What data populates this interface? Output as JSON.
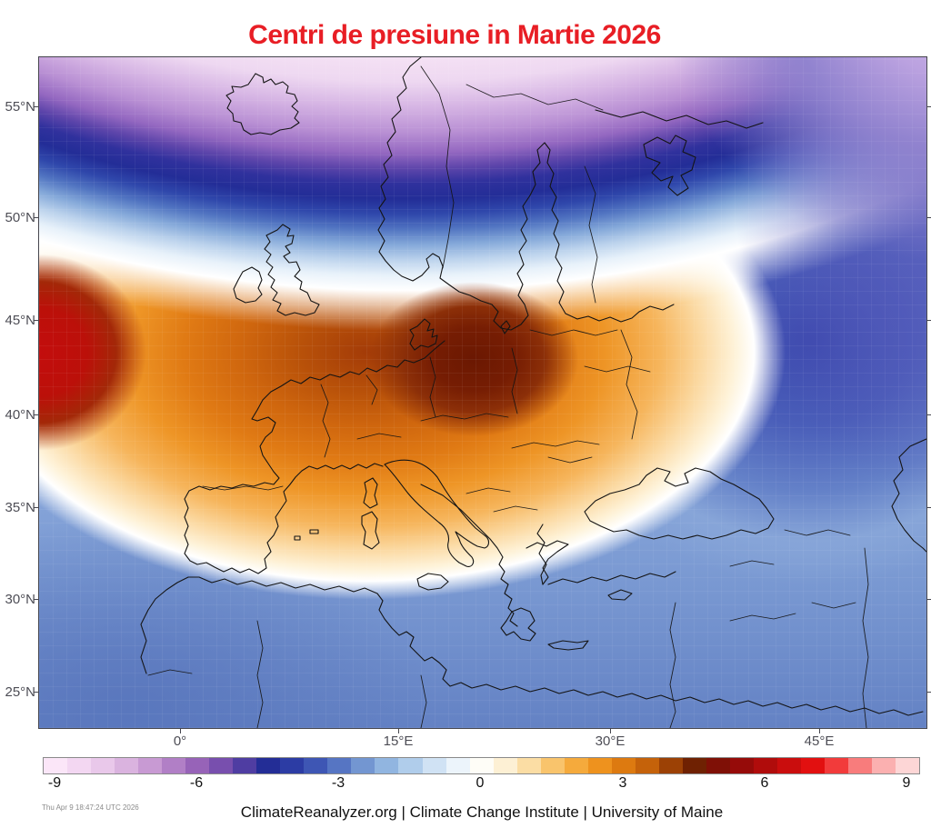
{
  "title": {
    "text": "Centri de presiune in Martie 2026",
    "color": "#e81e25"
  },
  "map": {
    "lat_ticks": [
      "55°N",
      "50°N",
      "45°N",
      "40°N",
      "35°N",
      "30°N",
      "25°N"
    ],
    "lon_ticks": [
      "0°",
      "15°E",
      "30°E",
      "45°E"
    ],
    "estimated_centers": [
      {
        "region": "central Europe (Germany/Poland)",
        "anomaly": 5
      },
      {
        "region": "eastern North Atlantic ~45N (west edge)",
        "anomaly": 6.5
      },
      {
        "region": "Iceland / Nordic seas (north)",
        "anomaly": -9
      },
      {
        "region": "western Russia",
        "anomaly": -3.5
      },
      {
        "region": "northeast corner",
        "anomaly": -7
      },
      {
        "region": "Mediterranean / North Africa",
        "anomaly": -2
      }
    ]
  },
  "colorbar": {
    "range": [
      -9.25,
      9.25
    ],
    "step": 0.5,
    "tick_labels": [
      "-9",
      "-6",
      "-3",
      "0",
      "3",
      "6",
      "9"
    ],
    "tick_values": [
      -9,
      -6,
      -3,
      0,
      3,
      6,
      9
    ],
    "colors": [
      "#fbe6f8",
      "#f3d7f2",
      "#e9c8ea",
      "#dab3df",
      "#c89ad3",
      "#b17fc6",
      "#9763b8",
      "#784fae",
      "#4f3da2",
      "#232d96",
      "#2c3ca4",
      "#3e56b4",
      "#5675c3",
      "#7396d1",
      "#91b5e0",
      "#b0cdeb",
      "#d0e2f4",
      "#ecf4fb",
      "#fefdf7",
      "#fdf0d4",
      "#fbdda4",
      "#f9c46c",
      "#f5aa3c",
      "#ee921e",
      "#dd7a10",
      "#c5620a",
      "#9c4105",
      "#6f2102",
      "#7f1006",
      "#960b09",
      "#b00c0b",
      "#ca0d0d",
      "#e21010",
      "#f23b3b",
      "#f87c7c",
      "#fbb0b0",
      "#fdd6d6"
    ]
  },
  "footer": {
    "timestamp": "Thu Apr  9 18:47:24 UTC 2026",
    "attribution": "ClimateReanalyzer.org | Climate Change Institute | University of Maine"
  }
}
